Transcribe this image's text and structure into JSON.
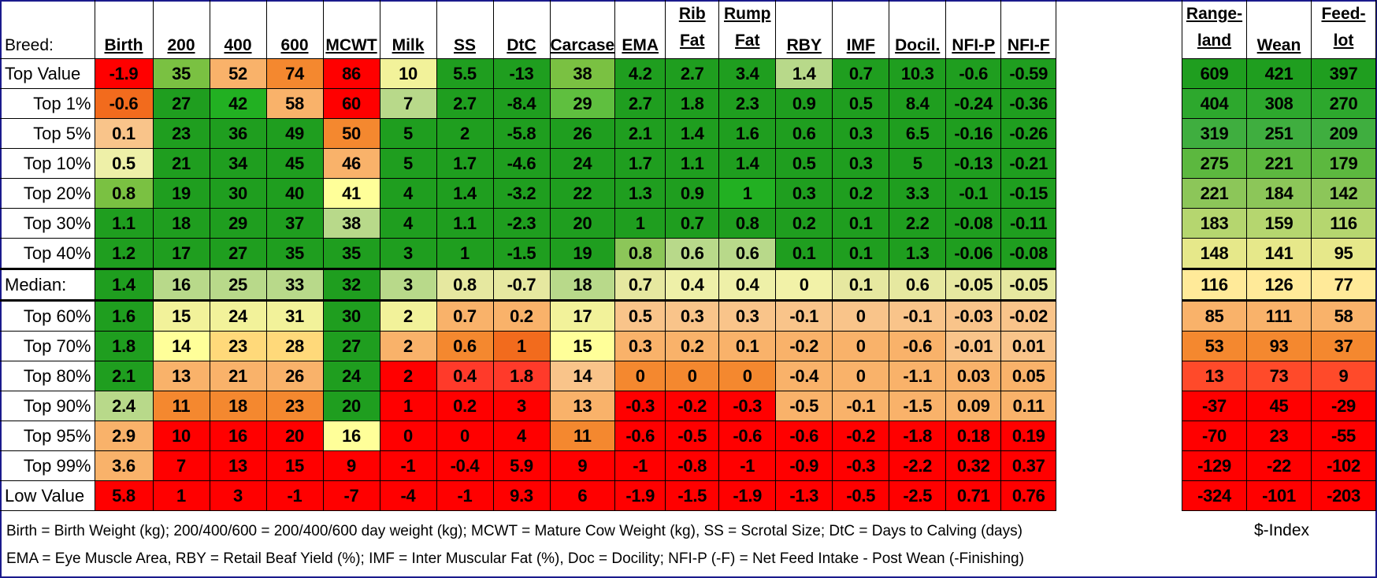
{
  "header": {
    "breed_label": "Breed:",
    "columns": [
      "Birth",
      "200",
      "400",
      "600",
      "MCWT",
      "Milk",
      "SS",
      "DtC",
      "Carcase",
      "EMA",
      "Rib Fat",
      "Rump Fat",
      "RBY",
      "IMF",
      "Docil.",
      "NFI-P",
      "NFI-F"
    ],
    "index_columns": [
      "Range-land",
      "Wean",
      "Feed-lot"
    ]
  },
  "rows": [
    {
      "label": "Top Value",
      "values": [
        "-1.9",
        "35",
        "52",
        "74",
        "86",
        "10",
        "5.5",
        "-13",
        "38",
        "4.2",
        "2.7",
        "3.4",
        "1.4",
        "0.7",
        "10.3",
        "-0.6",
        "-0.59"
      ],
      "index": [
        "609",
        "421",
        "397"
      ]
    },
    {
      "label": "Top 1%",
      "values": [
        "-0.6",
        "27",
        "42",
        "58",
        "60",
        "7",
        "2.7",
        "-8.4",
        "29",
        "2.7",
        "1.8",
        "2.3",
        "0.9",
        "0.5",
        "8.4",
        "-0.24",
        "-0.36"
      ],
      "index": [
        "404",
        "308",
        "270"
      ]
    },
    {
      "label": "Top 5%",
      "values": [
        "0.1",
        "23",
        "36",
        "49",
        "50",
        "5",
        "2",
        "-5.8",
        "26",
        "2.1",
        "1.4",
        "1.6",
        "0.6",
        "0.3",
        "6.5",
        "-0.16",
        "-0.26"
      ],
      "index": [
        "319",
        "251",
        "209"
      ]
    },
    {
      "label": "Top 10%",
      "values": [
        "0.5",
        "21",
        "34",
        "45",
        "46",
        "5",
        "1.7",
        "-4.6",
        "24",
        "1.7",
        "1.1",
        "1.4",
        "0.5",
        "0.3",
        "5",
        "-0.13",
        "-0.21"
      ],
      "index": [
        "275",
        "221",
        "179"
      ]
    },
    {
      "label": "Top 20%",
      "values": [
        "0.8",
        "19",
        "30",
        "40",
        "41",
        "4",
        "1.4",
        "-3.2",
        "22",
        "1.3",
        "0.9",
        "1",
        "0.3",
        "0.2",
        "3.3",
        "-0.1",
        "-0.15"
      ],
      "index": [
        "221",
        "184",
        "142"
      ]
    },
    {
      "label": "Top 30%",
      "values": [
        "1.1",
        "18",
        "29",
        "37",
        "38",
        "4",
        "1.1",
        "-2.3",
        "20",
        "1",
        "0.7",
        "0.8",
        "0.2",
        "0.1",
        "2.2",
        "-0.08",
        "-0.11"
      ],
      "index": [
        "183",
        "159",
        "116"
      ]
    },
    {
      "label": "Top 40%",
      "values": [
        "1.2",
        "17",
        "27",
        "35",
        "35",
        "3",
        "1",
        "-1.5",
        "19",
        "0.8",
        "0.6",
        "0.6",
        "0.1",
        "0.1",
        "1.3",
        "-0.06",
        "-0.08"
      ],
      "index": [
        "148",
        "141",
        "95"
      ]
    },
    {
      "label": "Median:",
      "values": [
        "1.4",
        "16",
        "25",
        "33",
        "32",
        "3",
        "0.8",
        "-0.7",
        "18",
        "0.7",
        "0.4",
        "0.4",
        "0",
        "0.1",
        "0.6",
        "-0.05",
        "-0.05"
      ],
      "index": [
        "116",
        "126",
        "77"
      ]
    },
    {
      "label": "Top 60%",
      "values": [
        "1.6",
        "15",
        "24",
        "31",
        "30",
        "2",
        "0.7",
        "0.2",
        "17",
        "0.5",
        "0.3",
        "0.3",
        "-0.1",
        "0",
        "-0.1",
        "-0.03",
        "-0.02"
      ],
      "index": [
        "85",
        "111",
        "58"
      ]
    },
    {
      "label": "Top 70%",
      "values": [
        "1.8",
        "14",
        "23",
        "28",
        "27",
        "2",
        "0.6",
        "1",
        "15",
        "0.3",
        "0.2",
        "0.1",
        "-0.2",
        "0",
        "-0.6",
        "-0.01",
        "0.01"
      ],
      "index": [
        "53",
        "93",
        "37"
      ]
    },
    {
      "label": "Top 80%",
      "values": [
        "2.1",
        "13",
        "21",
        "26",
        "24",
        "2",
        "0.4",
        "1.8",
        "14",
        "0",
        "0",
        "0",
        "-0.4",
        "0",
        "-1.1",
        "0.03",
        "0.05"
      ],
      "index": [
        "13",
        "73",
        "9"
      ]
    },
    {
      "label": "Top 90%",
      "values": [
        "2.4",
        "11",
        "18",
        "23",
        "20",
        "1",
        "0.2",
        "3",
        "13",
        "-0.3",
        "-0.2",
        "-0.3",
        "-0.5",
        "-0.1",
        "-1.5",
        "0.09",
        "0.11"
      ],
      "index": [
        "-37",
        "45",
        "-29"
      ]
    },
    {
      "label": "Top 95%",
      "values": [
        "2.9",
        "10",
        "16",
        "20",
        "16",
        "0",
        "0",
        "4",
        "11",
        "-0.6",
        "-0.5",
        "-0.6",
        "-0.6",
        "-0.2",
        "-1.8",
        "0.18",
        "0.19"
      ],
      "index": [
        "-70",
        "23",
        "-55"
      ]
    },
    {
      "label": "Top 99%",
      "values": [
        "3.6",
        "7",
        "13",
        "15",
        "9",
        "-1",
        "-0.4",
        "5.9",
        "9",
        "-1",
        "-0.8",
        "-1",
        "-0.9",
        "-0.3",
        "-2.2",
        "0.32",
        "0.37"
      ],
      "index": [
        "-129",
        "-22",
        "-102"
      ]
    },
    {
      "label": "Low Value",
      "values": [
        "5.8",
        "1",
        "3",
        "-1",
        "-7",
        "-4",
        "-1",
        "9.3",
        "6",
        "-1.9",
        "-1.5",
        "-1.9",
        "-1.3",
        "-0.5",
        "-2.5",
        "0.71",
        "0.76"
      ],
      "index": [
        "-324",
        "-101",
        "-203"
      ]
    }
  ],
  "colors": [
    [
      "#ff0000",
      "#7ac142",
      "#f9b26a",
      "#f4882f",
      "#ff0000",
      "#f2f29a",
      "#1f9e1f",
      "#1f9e1f",
      "#7ac142",
      "#1f9e1f",
      "#1f9e1f",
      "#1f9e1f",
      "#b8d98a",
      "#1f9e1f",
      "#1f9e1f",
      "#1f9e1f",
      "#1f9e1f",
      "#1f9e1f",
      "#1f9e1f",
      "#1f9e1f"
    ],
    [
      "#f26b1d",
      "#1f9e1f",
      "#22b022",
      "#f9b26a",
      "#ff0000",
      "#b8d98a",
      "#1f9e1f",
      "#1f9e1f",
      "#5fbf3f",
      "#1f9e1f",
      "#1f9e1f",
      "#1f9e1f",
      "#1f9e1f",
      "#1f9e1f",
      "#1f9e1f",
      "#1f9e1f",
      "#1f9e1f",
      "#2da82d",
      "#2da82d",
      "#2da82d"
    ],
    [
      "#f9c48a",
      "#1f9e1f",
      "#1f9e1f",
      "#1f9e1f",
      "#f4882f",
      "#1f9e1f",
      "#1f9e1f",
      "#1f9e1f",
      "#1f9e1f",
      "#1f9e1f",
      "#1f9e1f",
      "#1f9e1f",
      "#1f9e1f",
      "#1f9e1f",
      "#1f9e1f",
      "#1f9e1f",
      "#1f9e1f",
      "#3fae3f",
      "#3fae3f",
      "#3fae3f"
    ],
    [
      "#eef0a8",
      "#1f9e1f",
      "#1f9e1f",
      "#1f9e1f",
      "#f9b26a",
      "#1f9e1f",
      "#1f9e1f",
      "#1f9e1f",
      "#1f9e1f",
      "#1f9e1f",
      "#1f9e1f",
      "#1f9e1f",
      "#1f9e1f",
      "#1f9e1f",
      "#1f9e1f",
      "#1f9e1f",
      "#1f9e1f",
      "#5cb83f",
      "#5cb83f",
      "#5cb83f"
    ],
    [
      "#7ac142",
      "#1f9e1f",
      "#1f9e1f",
      "#1f9e1f",
      "#ffff99",
      "#1f9e1f",
      "#1f9e1f",
      "#1f9e1f",
      "#1f9e1f",
      "#1f9e1f",
      "#1f9e1f",
      "#22b022",
      "#1f9e1f",
      "#1f9e1f",
      "#1f9e1f",
      "#1f9e1f",
      "#1f9e1f",
      "#8cc659",
      "#8cc659",
      "#8cc659"
    ],
    [
      "#1f9e1f",
      "#1f9e1f",
      "#1f9e1f",
      "#1f9e1f",
      "#b8d98a",
      "#1f9e1f",
      "#1f9e1f",
      "#1f9e1f",
      "#1f9e1f",
      "#1f9e1f",
      "#1f9e1f",
      "#1f9e1f",
      "#1f9e1f",
      "#1f9e1f",
      "#1f9e1f",
      "#1f9e1f",
      "#1f9e1f",
      "#b5d66f",
      "#b5d66f",
      "#b5d66f"
    ],
    [
      "#1f9e1f",
      "#1f9e1f",
      "#1f9e1f",
      "#1f9e1f",
      "#1f9e1f",
      "#1f9e1f",
      "#1f9e1f",
      "#1f9e1f",
      "#1f9e1f",
      "#8cc659",
      "#b8d98a",
      "#b8d98a",
      "#1f9e1f",
      "#1f9e1f",
      "#1f9e1f",
      "#1f9e1f",
      "#1f9e1f",
      "#e6e88a",
      "#e6e88a",
      "#e6e88a"
    ],
    [
      "#1f9e1f",
      "#b8d98a",
      "#b8d98a",
      "#b8d98a",
      "#1f9e1f",
      "#b8d98a",
      "#e6e8a0",
      "#e6e8a0",
      "#b8d98a",
      "#e6e8a0",
      "#eef0a8",
      "#eef0a8",
      "#f2f2a8",
      "#e6e8a0",
      "#e6e8a0",
      "#e6e8a0",
      "#e6e8a0",
      "#ffea99",
      "#ffea99",
      "#ffea99"
    ],
    [
      "#1f9e1f",
      "#f2f29a",
      "#f2f29a",
      "#f2f29a",
      "#1f9e1f",
      "#f2f29a",
      "#f9b26a",
      "#f9b26a",
      "#f2f29a",
      "#f9c48a",
      "#f9c48a",
      "#f9c48a",
      "#f9c48a",
      "#f9c48a",
      "#f9c48a",
      "#f9c48a",
      "#f9c48a",
      "#f9b26a",
      "#f9b26a",
      "#f9b26a"
    ],
    [
      "#1f9e1f",
      "#ffff99",
      "#ffd97a",
      "#ffd97a",
      "#1f9e1f",
      "#f9b26a",
      "#f4882f",
      "#f26b1d",
      "#ffff99",
      "#f9b26a",
      "#f9b26a",
      "#f9b26a",
      "#f9b26a",
      "#f9b26a",
      "#f9b26a",
      "#f9c48a",
      "#f9c48a",
      "#f4882f",
      "#f4882f",
      "#f4882f"
    ],
    [
      "#1f9e1f",
      "#f9b26a",
      "#f9b26a",
      "#f9b26a",
      "#1f9e1f",
      "#ff0000",
      "#ff3a2a",
      "#ff3a2a",
      "#f9c48a",
      "#f4882f",
      "#f4882f",
      "#f4882f",
      "#f9b26a",
      "#f9b26a",
      "#f9b26a",
      "#f9b26a",
      "#f9b26a",
      "#ff4a2a",
      "#ff4a2a",
      "#ff4a2a"
    ],
    [
      "#b8d98a",
      "#f4882f",
      "#f4882f",
      "#f4882f",
      "#1f9e1f",
      "#ff0000",
      "#ff0000",
      "#ff0000",
      "#f9b26a",
      "#ff0000",
      "#ff0000",
      "#ff0000",
      "#f9b26a",
      "#f9b26a",
      "#f9b26a",
      "#f9b26a",
      "#f9b26a",
      "#ff0000",
      "#ff0000",
      "#ff0000"
    ],
    [
      "#f9b26a",
      "#ff0000",
      "#ff0000",
      "#ff0000",
      "#ffff99",
      "#ff0000",
      "#ff0000",
      "#ff0000",
      "#f4882f",
      "#ff0000",
      "#ff0000",
      "#ff0000",
      "#ff0000",
      "#ff0000",
      "#ff0000",
      "#ff0000",
      "#ff0000",
      "#ff0000",
      "#ff0000",
      "#ff0000"
    ],
    [
      "#f9b26a",
      "#ff0000",
      "#ff0000",
      "#ff0000",
      "#ff0000",
      "#ff0000",
      "#ff0000",
      "#ff0000",
      "#ff0000",
      "#ff0000",
      "#ff0000",
      "#ff0000",
      "#ff0000",
      "#ff0000",
      "#ff0000",
      "#ff0000",
      "#ff0000",
      "#ff0000",
      "#ff0000",
      "#ff0000"
    ],
    [
      "#ff0000",
      "#ff0000",
      "#ff0000",
      "#ff0000",
      "#ff0000",
      "#ff0000",
      "#ff0000",
      "#ff0000",
      "#ff0000",
      "#ff0000",
      "#ff0000",
      "#ff0000",
      "#ff0000",
      "#ff0000",
      "#ff0000",
      "#ff0000",
      "#ff0000",
      "#ff0000",
      "#ff0000",
      "#ff0000"
    ]
  ],
  "notes": {
    "line1": "Birth = Birth Weight (kg); 200/400/600 = 200/400/600 day weight (kg); MCWT = Mature Cow Weight (kg), SS = Scrotal Size; DtC = Days to Calving (days)",
    "line2": "EMA = Eye Muscle Area, RBY = Retail Beaf Yield (%); IMF = Inter Muscular Fat (%), Doc = Docility; NFI-P (-F) = Net Feed Intake - Post Wean (-Finishing)",
    "index_label": "$-Index"
  }
}
